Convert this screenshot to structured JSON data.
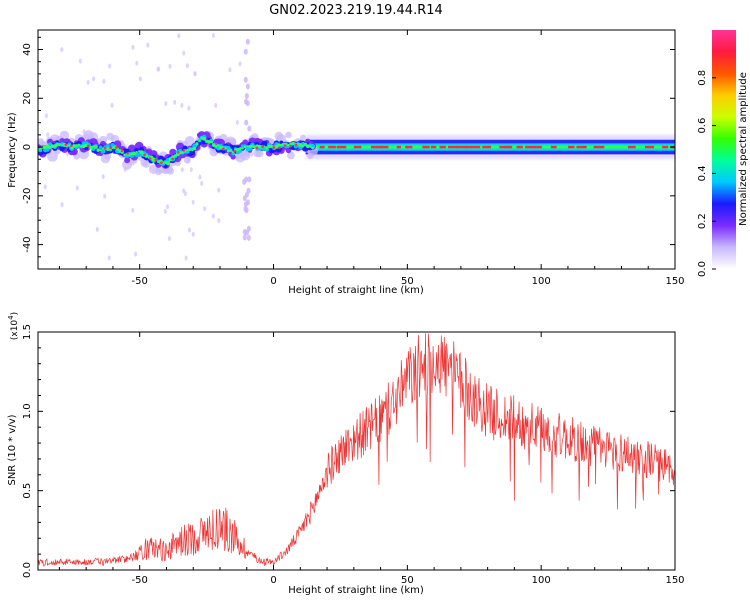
{
  "title": "GN02.2023.219.19.44.R14",
  "chart_data": [
    {
      "type": "heatmap",
      "xlabel": "Height of straight line (km)",
      "ylabel": "Frequency (Hz)",
      "xlim": [
        -88,
        150
      ],
      "ylim": [
        -50,
        48
      ],
      "xticks": [
        -50,
        0,
        50,
        100,
        150
      ],
      "yticks": [
        -40,
        -20,
        0,
        20,
        40
      ],
      "colorbar": {
        "label": "Normalized spectral amplitude",
        "range": [
          0,
          1
        ],
        "ticks": [
          "0.0",
          "0.2",
          "0.4",
          "0.6",
          "0.8"
        ],
        "colors": [
          "#ffffff",
          "#c9b8ff",
          "#7b2bff",
          "#1a1aff",
          "#00c8ff",
          "#00ff99",
          "#33ff00",
          "#ccff00",
          "#ffcc00",
          "#ff5500",
          "#ff1a40",
          "#ff3399"
        ]
      },
      "ridge": {
        "x": [
          -88,
          -80,
          -75,
          -70,
          -65,
          -60,
          -55,
          -50,
          -45,
          -40,
          -35,
          -30,
          -27,
          -24,
          -20,
          -15,
          -10,
          -5,
          0,
          5,
          10,
          15,
          20,
          150
        ],
        "freq": [
          -1,
          1,
          0,
          1,
          -1,
          0,
          -3,
          -2,
          -5,
          -7,
          -2,
          -1,
          4,
          2,
          0,
          -2,
          0,
          0,
          0,
          1,
          1,
          0,
          0,
          0
        ]
      }
    },
    {
      "type": "line",
      "xlabel": "Height of straight line (km)",
      "ylabel": "SNR (10 * v/v)",
      "scale_label": "(x10",
      "scale_exp": "4",
      "scale_close": ")",
      "xlim": [
        -88,
        150
      ],
      "ylim": [
        0,
        1.5
      ],
      "xticks": [
        -50,
        0,
        50,
        100,
        150
      ],
      "yticks": [
        "0.0",
        "0.5",
        "1.0",
        "1.5"
      ],
      "color": "#ee3333",
      "series": [
        {
          "x": [
            -88,
            -80,
            -70,
            -60,
            -55,
            -50,
            -45,
            -40,
            -35,
            -30,
            -25,
            -20,
            -15,
            -10,
            -5,
            0,
            5,
            10,
            15,
            20,
            25,
            30,
            35,
            40,
            45,
            50,
            55,
            60,
            65,
            70,
            75,
            80,
            90,
            100,
            110,
            120,
            130,
            140,
            150
          ],
          "values": [
            0.05,
            0.05,
            0.05,
            0.06,
            0.07,
            0.12,
            0.14,
            0.12,
            0.18,
            0.2,
            0.24,
            0.28,
            0.22,
            0.12,
            0.06,
            0.05,
            0.12,
            0.24,
            0.4,
            0.62,
            0.74,
            0.82,
            0.88,
            0.95,
            1.05,
            1.2,
            1.28,
            1.33,
            1.28,
            1.18,
            1.08,
            1.0,
            0.94,
            0.88,
            0.83,
            0.78,
            0.74,
            0.7,
            0.63
          ]
        }
      ]
    }
  ]
}
